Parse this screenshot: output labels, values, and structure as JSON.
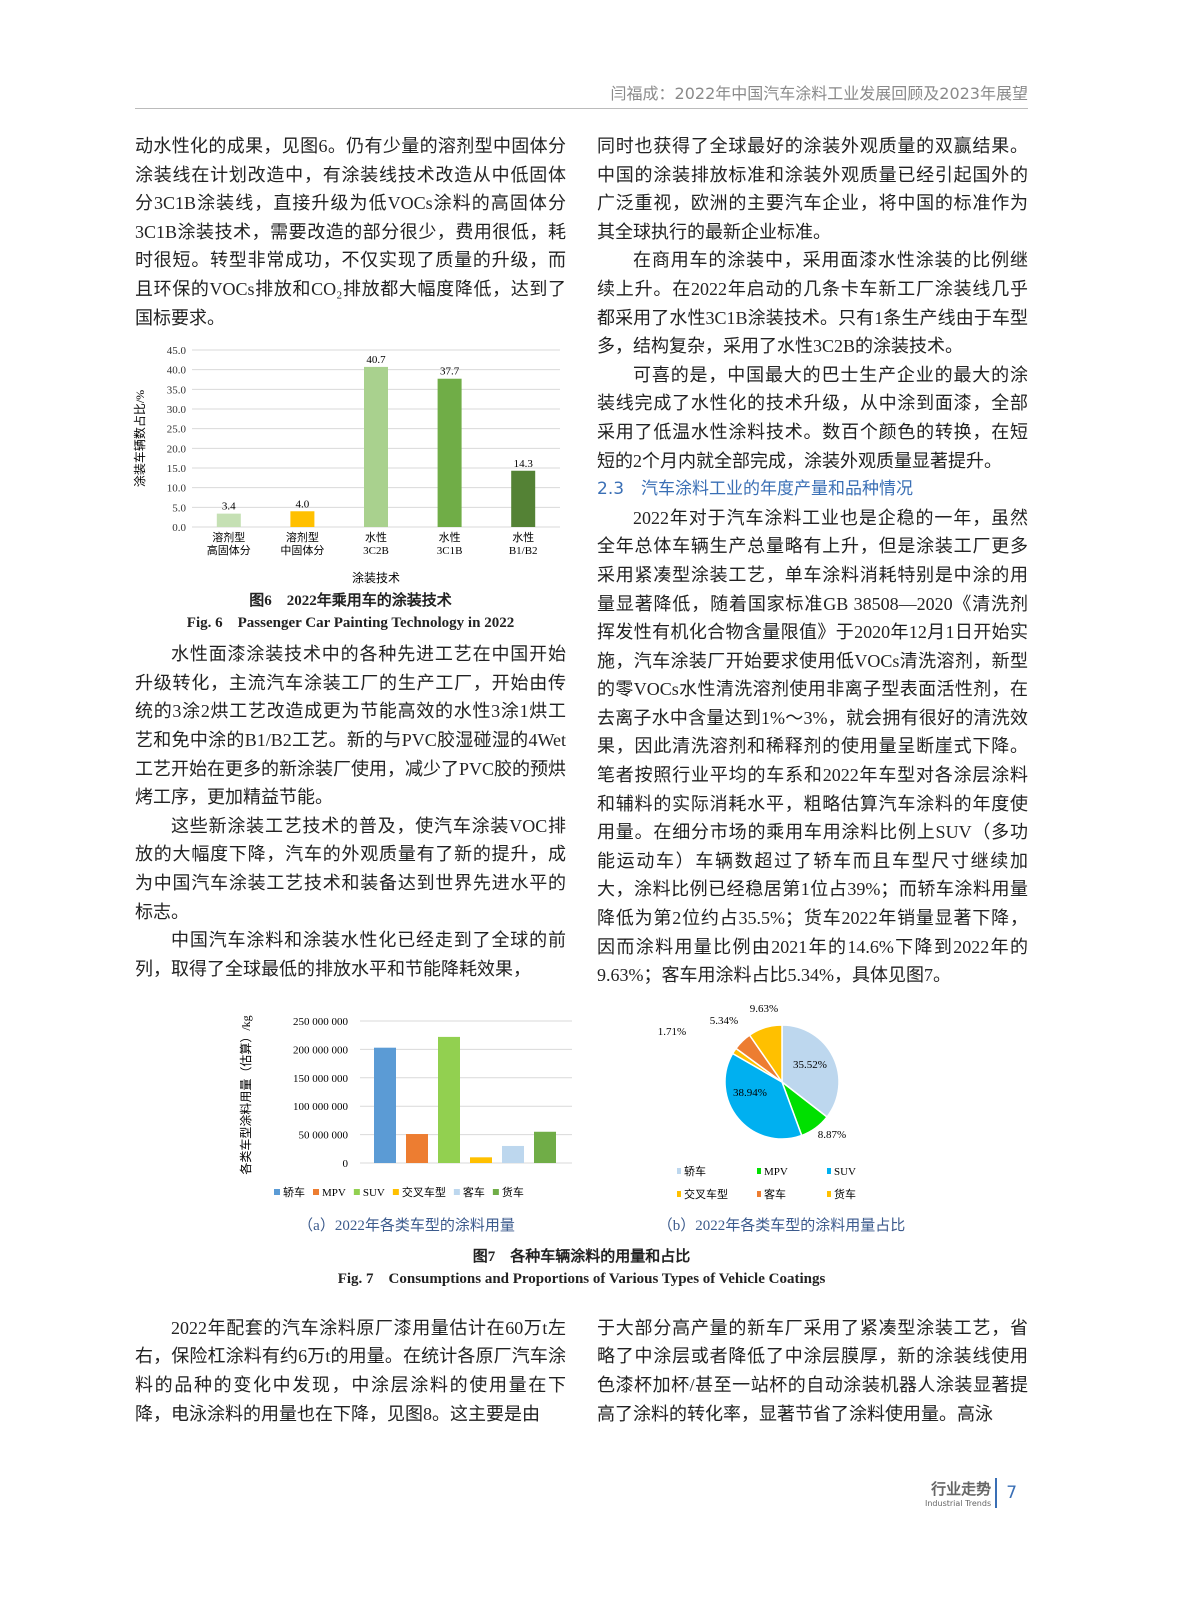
{
  "header": {
    "running_title": "闫福成：2022年中国汽车涂料工业发展回顾及2023年展望"
  },
  "left_top": {
    "p1": "动水性化的成果，见图6。仍有少量的溶剂型中固体分涂装线在计划改造中，有涂装线技术改造从中低固体分3C1B涂装线，直接升级为低VOCs涂料的高固体分3C1B涂装技术，需要改造的部分很少，费用很低，耗时很短。转型非常成功，不仅实现了质量的升级，而且环保的VOCs排放和CO₂排放都大幅度降低，达到了国标要求。"
  },
  "left_mid": {
    "p2": "水性面漆涂装技术中的各种先进工艺在中国开始升级转化，主流汽车涂装工厂的生产工厂，开始由传统的3涂2烘工艺改造成更为节能高效的水性3涂1烘工艺和免中涂的B1/B2工艺。新的与PVC胶湿碰湿的4Wet工艺开始在更多的新涂装厂使用，减少了PVC胶的预烘烤工序，更加精益节能。",
    "p3": "这些新涂装工艺技术的普及，使汽车涂装VOC排放的大幅度下降，汽车的外观质量有了新的提升，成为中国汽车涂装工艺技术和装备达到世界先进水平的标志。",
    "p4": "中国汽车涂料和涂装水性化已经走到了全球的前列，取得了全球最低的排放水平和节能降耗效果，"
  },
  "right_top": {
    "p1": "同时也获得了全球最好的涂装外观质量的双赢结果。中国的涂装排放标准和涂装外观质量已经引起国外的广泛重视，欧洲的主要汽车企业，将中国的标准作为其全球执行的最新企业标准。",
    "p2": "在商用车的涂装中，采用面漆水性涂装的比例继续上升。在2022年启动的几条卡车新工厂涂装线几乎都采用了水性3C1B涂装技术。只有1条生产线由于车型多，结构复杂，采用了水性3C2B的涂装技术。",
    "p3": "可喜的是，中国最大的巴士生产企业的最大的涂装线完成了水性化的技术升级，从中涂到面漆，全部采用了低温水性涂料技术。数百个颜色的转换，在短短的2个月内就全部完成，涂装外观质量显著提升。",
    "heading": "2.3　汽车涂料工业的年度产量和品种情况",
    "p4": "2022年对于汽车涂料工业也是企稳的一年，虽然全年总体车辆生产总量略有上升，但是涂装工厂更多采用紧凑型涂装工艺，单车涂料消耗特别是中涂的用量显著降低，随着国家标准GB 38508—2020《清洗剂挥发性有机化合物含量限值》于2020年12月1日开始实施，汽车涂装厂开始要求使用低VOCs清洗溶剂，新型的零VOCs水性清洗溶剂使用非离子型表面活性剂，在去离子水中含量达到1%～3%，就会拥有很好的清洗效果，因此清洗溶剂和稀释剂的使用量呈断崖式下降。笔者按照行业平均的车系和2022年车型对各涂层涂料和辅料的实际消耗水平，粗略估算汽车涂料的年度使用量。在细分市场的乘用车用涂料比例上SUV（多功能运动车）车辆数超过了轿车而且车型尺寸继续加大，涂料比例已经稳居第1位占39%；而轿车涂料用量降低为第2位约占35.5%；货车2022年销量显著下降，因而涂料用量比例由2021年的14.6%下降到2022年的9.63%；客车用涂料占比5.34%，具体见图7。"
  },
  "bottom": {
    "left": "2022年配套的汽车涂料原厂漆用量估计在60万t左右，保险杠涂料有约6万t的用量。在统计各原厂汽车涂料的品种的变化中发现，中涂层涂料的使用量在下降，电泳涂料的用量也在下降，见图8。这主要是由",
    "right": "于大部分高产量的新车厂采用了紧凑型涂装工艺，省略了中涂层或者降低了中涂层膜厚，新的涂装线使用色漆杯加杯/甚至一站杯的自动涂装机器人涂装显著提高了涂料的转化率，显著节省了涂料使用量。高泳"
  },
  "fig6": {
    "caption_cn": "图6　2022年乘用车的涂装技术",
    "caption_en": "Fig. 6　Passenger Car Painting Technology in 2022"
  },
  "fig7": {
    "caption_cn": "图7　各种车辆涂料的用量和占比",
    "caption_en": "Fig. 7　Consumptions and Proportions of Various Types of Vehicle Coatings",
    "sub_a": "（a）2022年各类车型的涂料用量",
    "sub_b": "（b）2022年各类车型的涂料用量占比"
  },
  "footer": {
    "section": "行业走势",
    "section_en": "Industrial Trends",
    "page": "7"
  },
  "chart_data": [
    {
      "type": "bar",
      "title": "",
      "xlabel": "涂装技术",
      "ylabel": "涂装车辆数占比/%",
      "ylim": [
        0,
        45
      ],
      "yticks": [
        "0.0",
        "5.0",
        "10.0",
        "15.0",
        "20.0",
        "25.0",
        "30.0",
        "35.0",
        "40.0",
        "45.0"
      ],
      "grid": true,
      "categories": [
        [
          "溶剂型",
          "高固体分"
        ],
        [
          "溶剂型",
          "中固体分"
        ],
        [
          "水性",
          "3C2B"
        ],
        [
          "水性",
          "3C1B"
        ],
        [
          "水性",
          "B1/B2"
        ]
      ],
      "values": [
        3.4,
        4.0,
        40.7,
        37.7,
        14.3
      ],
      "labels": [
        "3.4",
        "4.0",
        "40.7",
        "37.7",
        "14.3"
      ],
      "colors": [
        "#c5e0b4",
        "#ffc000",
        "#a9d18e",
        "#70ad47",
        "#548235"
      ]
    },
    {
      "type": "bar",
      "title": "",
      "ylabel": "各类车型涂料用量（估算）/kg",
      "ylim": [
        0,
        250000000
      ],
      "yticks": [
        "0",
        "50 000 000",
        "100 000 000",
        "150 000 000",
        "200 000 000",
        "250 000 000"
      ],
      "grid": true,
      "legend": "bottom",
      "categories": [
        "轿车",
        "MPV",
        "SUV",
        "交叉车型",
        "客车",
        "货车"
      ],
      "values": [
        203000000,
        51000000,
        222000000,
        10000000,
        30000000,
        55000000
      ],
      "colors": [
        "#5b9bd5",
        "#ed7d31",
        "#92d050",
        "#ffc000",
        "#bdd7ee",
        "#70ad47"
      ]
    },
    {
      "type": "pie",
      "title": "",
      "legend": "bottom",
      "categories": [
        "轿车",
        "MPV",
        "SUV",
        "交叉车型",
        "客车",
        "货车"
      ],
      "values": [
        35.52,
        8.87,
        38.94,
        1.71,
        5.34,
        9.63
      ],
      "labels": [
        "35.52%",
        "8.87%",
        "38.94%",
        "1.71%",
        "5.34%",
        "9.63%"
      ],
      "colors": [
        "#bdd7ee",
        "#00e000",
        "#00b0f0",
        "#ffc000",
        "#ed7d31",
        "#ffc000"
      ]
    }
  ]
}
